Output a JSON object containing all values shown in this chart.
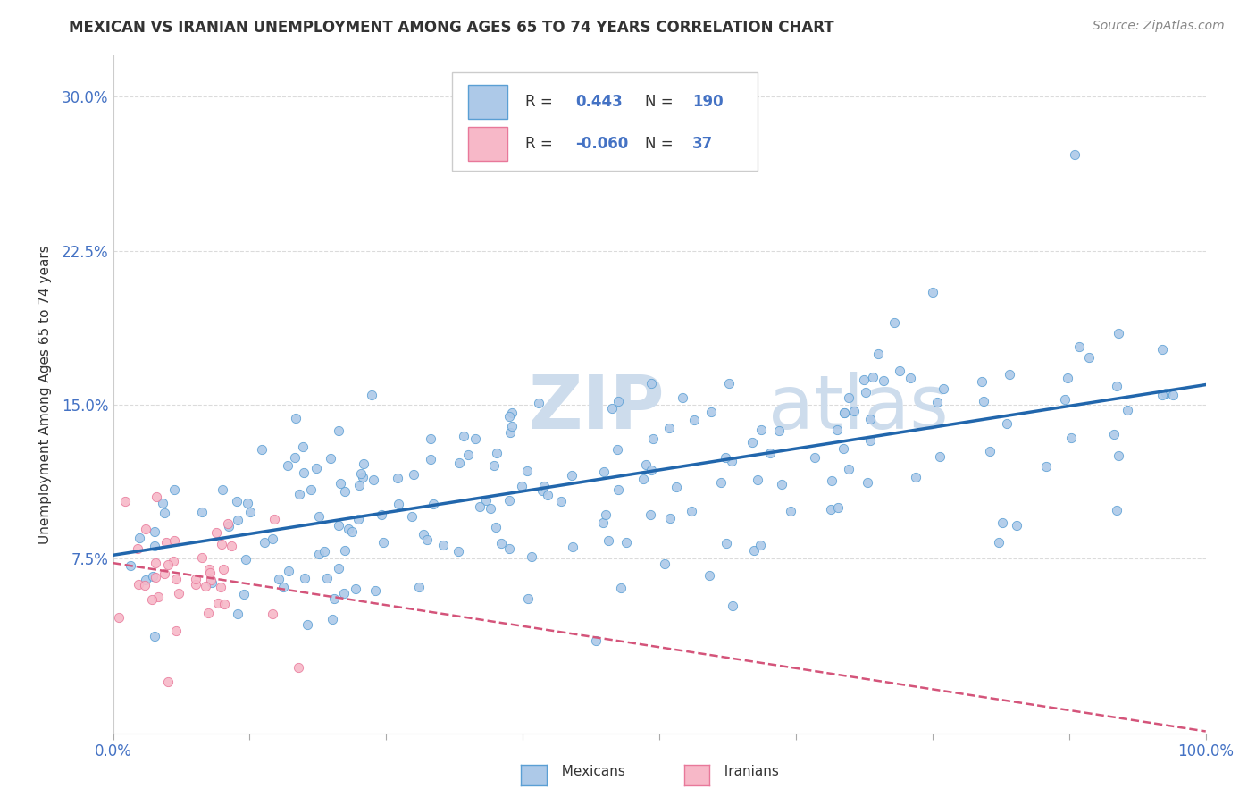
{
  "title": "MEXICAN VS IRANIAN UNEMPLOYMENT AMONG AGES 65 TO 74 YEARS CORRELATION CHART",
  "source": "Source: ZipAtlas.com",
  "ylabel": "Unemployment Among Ages 65 to 74 years",
  "xlim": [
    0.0,
    1.0
  ],
  "ylim": [
    -0.01,
    0.32
  ],
  "xticks": [
    0.0,
    0.125,
    0.25,
    0.375,
    0.5,
    0.625,
    0.75,
    0.875,
    1.0
  ],
  "xtick_labels": [
    "0.0%",
    "",
    "",
    "",
    "",
    "",
    "",
    "",
    "100.0%"
  ],
  "ytick_positions": [
    0.075,
    0.15,
    0.225,
    0.3
  ],
  "ytick_labels": [
    "7.5%",
    "15.0%",
    "22.5%",
    "30.0%"
  ],
  "mexican_R": 0.443,
  "mexican_N": 190,
  "iranian_R": -0.06,
  "iranian_N": 37,
  "mexican_color": "#adc9e8",
  "mexican_edge_color": "#5a9fd4",
  "mexican_line_color": "#2166ac",
  "iranian_color": "#f7b8c8",
  "iranian_edge_color": "#e8789a",
  "iranian_line_color": "#d4547a",
  "watermark_zip": "ZIP",
  "watermark_atlas": "atlas",
  "watermark_color": "#cddcec",
  "background_color": "#ffffff",
  "grid_color": "#d8d8d8",
  "legend_box_color": "#ffffff",
  "legend_border_color": "#cccccc",
  "text_color": "#333333",
  "axis_label_color": "#4472c4",
  "title_fontsize": 12,
  "source_fontsize": 10,
  "tick_fontsize": 12,
  "ylabel_fontsize": 11
}
